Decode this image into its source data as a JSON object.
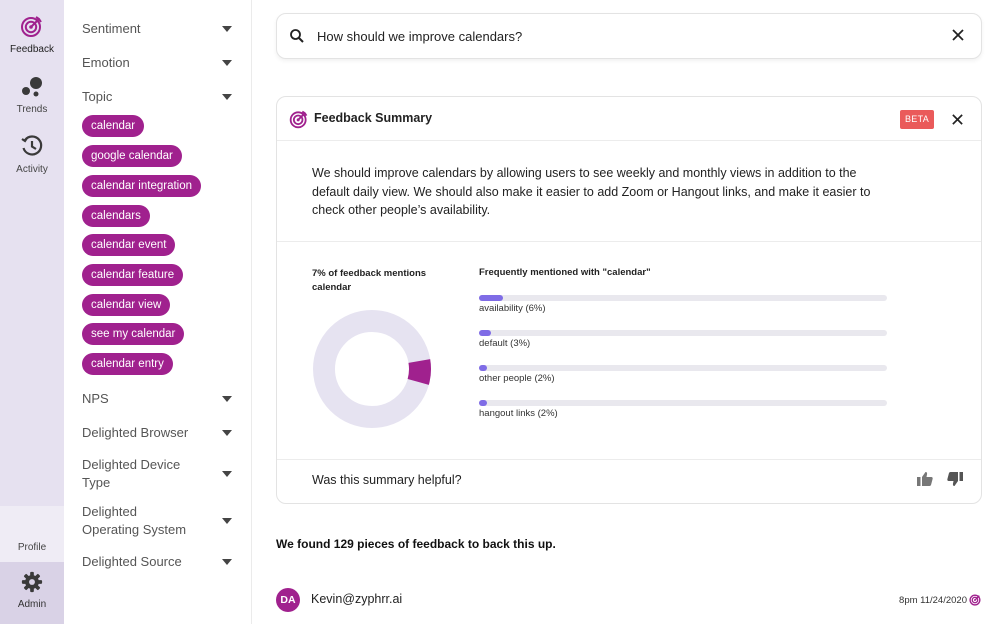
{
  "nav": {
    "items": [
      {
        "label": "Feedback",
        "icon": "target-icon",
        "active": true
      },
      {
        "label": "Trends",
        "icon": "bubbles-icon"
      },
      {
        "label": "Activity",
        "icon": "history-icon"
      }
    ],
    "profile_label": "Profile",
    "admin_label": "Admin"
  },
  "filters": {
    "sentiment": "Sentiment",
    "emotion": "Emotion",
    "topic": "Topic",
    "topic_chips": [
      "calendar",
      "google calendar",
      "calendar integration",
      "calendars",
      "calendar event",
      "calendar feature",
      "calendar view",
      "see my calendar",
      "calendar entry"
    ],
    "nps": "NPS",
    "delighted_browser": "Delighted Browser",
    "delighted_device_type": "Delighted Device Type",
    "delighted_os": "Delighted Operating System",
    "delighted_source": "Delighted Source"
  },
  "search": {
    "query": "How should we improve calendars?"
  },
  "summary": {
    "title": "Feedback Summary",
    "badge": "BETA",
    "text": "We should improve calendars by allowing users to see weekly and monthly views in addition to the default daily view. We should also make it easier to add Zoom or Hangout links, and make it easier to check other people’s availability.",
    "pct_label": "7% of feedback mentions calendar",
    "pct_value": 7,
    "freq_title": "Frequently mentioned with \"calendar\"",
    "freq": [
      {
        "label": "availability (6%)",
        "value": 6
      },
      {
        "label": "default (3%)",
        "value": 3
      },
      {
        "label": "other people (2%)",
        "value": 2
      },
      {
        "label": "hangout links (2%)",
        "value": 2
      }
    ],
    "helpful": "Was this summary helpful?"
  },
  "results": {
    "found": "We found 129 pieces of feedback to back this up.",
    "first": {
      "initials": "DA",
      "user": "Kevin@zyphrr.ai",
      "time": "8pm 11/24/2020"
    }
  },
  "colors": {
    "accent": "#a0218e",
    "bar": "#7f6ce6",
    "rail": "#e6e1f0",
    "beta": "#ea5a5a"
  }
}
